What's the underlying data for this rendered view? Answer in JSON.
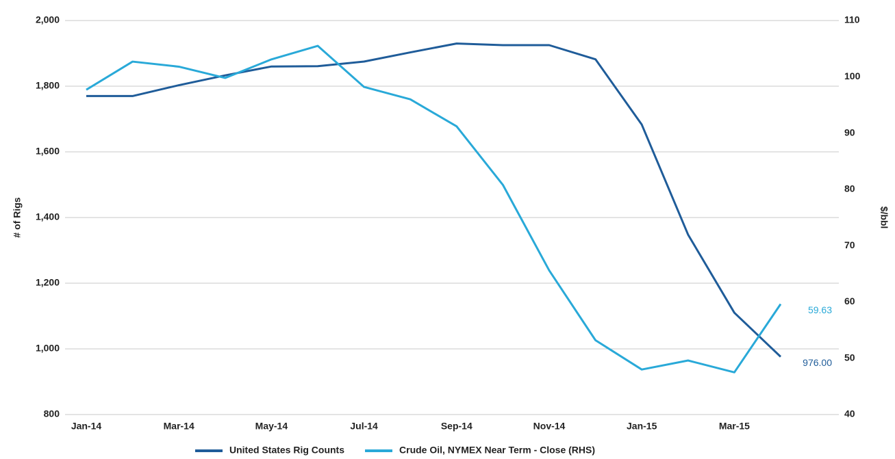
{
  "chart_data": {
    "type": "line",
    "categories": [
      "Jan-14",
      null,
      "Mar-14",
      null,
      "May-14",
      null,
      "Jul-14",
      null,
      "Sep-14",
      null,
      "Nov-14",
      null,
      "Jan-15",
      null,
      "Mar-15",
      null
    ],
    "ylabel": "# of Rigs",
    "y2label": "$/bbl",
    "ylim": [
      800,
      2000
    ],
    "yticks": [
      800,
      {
        "value": 1000,
        "label": "1,000"
      },
      {
        "value": 1200,
        "label": "1,200"
      },
      {
        "value": 1400,
        "label": "1,400"
      },
      {
        "value": 1600,
        "label": "1,600"
      },
      {
        "value": 1800,
        "label": "1,800"
      },
      {
        "value": 2000,
        "label": "2,000"
      }
    ],
    "y2lim": [
      40,
      110
    ],
    "y2ticks": [
      40,
      50,
      60,
      70,
      80,
      90,
      100,
      110
    ],
    "grid": true,
    "legend": "bottom",
    "series": [
      {
        "name": "United States Rig Counts",
        "color": "#1f5c99",
        "values": [
          1770,
          1770,
          1803,
          1833,
          1860,
          1861,
          1875,
          1903,
          1930,
          1925,
          1925,
          1882,
          1683,
          1348,
          1110,
          976
        ],
        "value_labels": [
          null,
          null,
          null,
          null,
          null,
          null,
          null,
          null,
          null,
          null,
          null,
          null,
          null,
          null,
          null,
          "976.00"
        ]
      },
      {
        "name": "Crude Oil, NYMEX Near Term - Close (RHS)",
        "color": "#29a9d8",
        "axis": "y2",
        "values": [
          97.7,
          102.7,
          101.8,
          99.8,
          103.1,
          105.5,
          98.2,
          96.0,
          91.2,
          80.8,
          65.6,
          53.2,
          48.0,
          49.6,
          47.5,
          59.63
        ],
        "value_labels": [
          null,
          null,
          null,
          null,
          null,
          null,
          null,
          null,
          null,
          null,
          null,
          null,
          null,
          null,
          null,
          "59.63"
        ]
      }
    ]
  }
}
